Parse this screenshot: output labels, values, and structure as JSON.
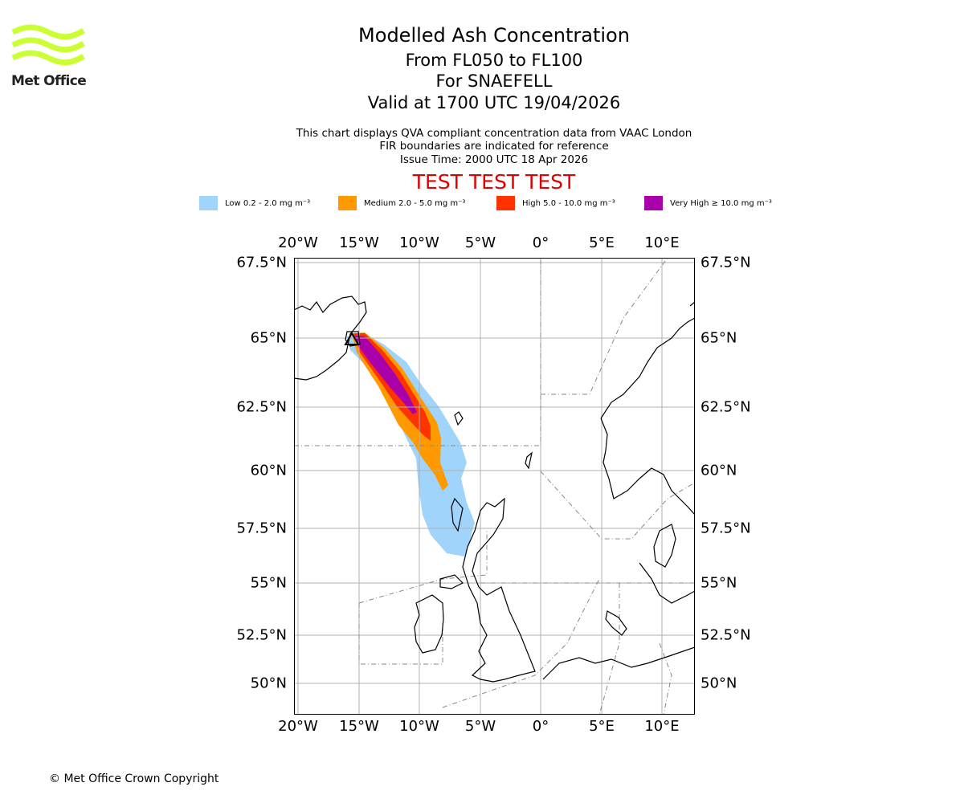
{
  "header": {
    "title": "Modelled Ash Concentration",
    "levels": "From FL050 to FL100",
    "volcano": "For SNAEFELL",
    "valid": "Valid at 1700 UTC 19/04/2026",
    "desc1": "This chart displays QVA compliant concentration data from VAAC London",
    "desc2": "FIR boundaries are indicated for reference",
    "issue": "Issue Time: 2000 UTC 18 Apr 2026",
    "test_banner": "TEST TEST TEST"
  },
  "logo": {
    "text": "Met Office",
    "color": "#ccff33"
  },
  "legend": [
    {
      "label": "Low 0.2 - 2.0 mg m⁻³",
      "color": "#a0d4fa"
    },
    {
      "label": "Medium 2.0 - 5.0 mg m⁻³",
      "color": "#ff9900"
    },
    {
      "label": "High 5.0 - 10.0 mg m⁻³",
      "color": "#ff3300"
    },
    {
      "label": "Very High ≥ 10.0 mg m⁻³",
      "color": "#aa00aa"
    }
  ],
  "map": {
    "lon_ticks": [
      "20°W",
      "15°W",
      "10°W",
      "5°W",
      "0°",
      "5°E",
      "10°E"
    ],
    "lat_ticks": [
      "67.5°N",
      "65°N",
      "62.5°N",
      "60°N",
      "57.5°N",
      "55°N",
      "52.5°N",
      "50°N"
    ],
    "extent": {
      "lon_min": -20.0,
      "lon_max": 12.5,
      "lat_min": 48.5,
      "lat_max": 67.5
    }
  },
  "footer": {
    "copyright": "© Met Office Crown Copyright"
  }
}
